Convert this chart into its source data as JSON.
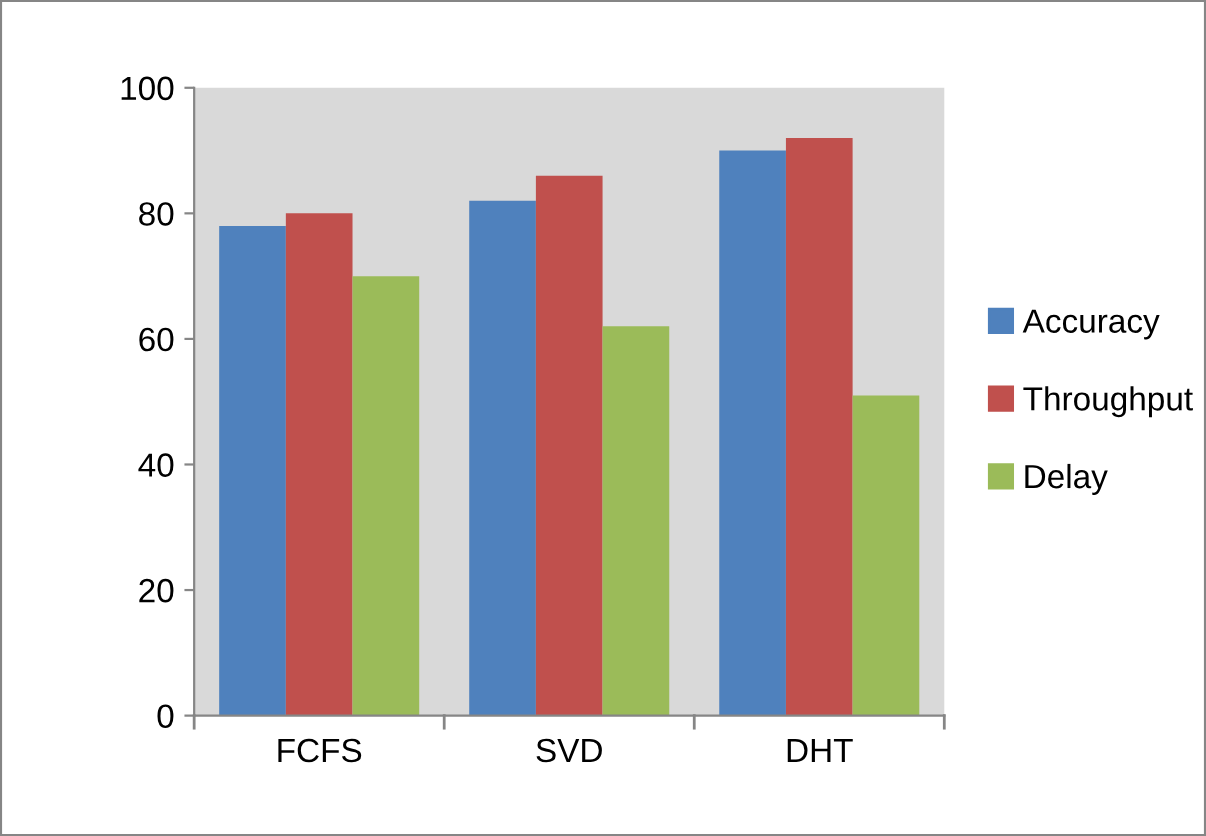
{
  "chart_data": {
    "type": "bar",
    "categories": [
      "FCFS",
      "SVD",
      "DHT"
    ],
    "series": [
      {
        "name": "Accuracy",
        "color": "#4f81bd",
        "values": [
          78,
          82,
          90
        ]
      },
      {
        "name": "Throughput",
        "color": "#c0504d",
        "values": [
          80,
          86,
          92
        ]
      },
      {
        "name": "Delay",
        "color": "#9bbb59",
        "values": [
          70,
          62,
          51
        ]
      }
    ],
    "ylim": [
      0,
      100
    ],
    "yticks": [
      0,
      20,
      40,
      60,
      80,
      100
    ],
    "grid": false,
    "legend": "right"
  }
}
